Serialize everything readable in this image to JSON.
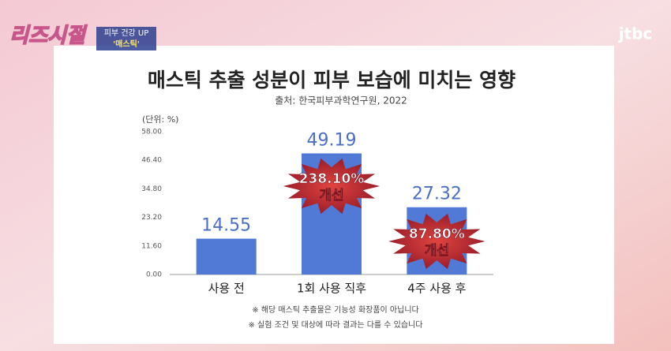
{
  "chart_data": {
    "type": "bar",
    "title": "매스틱 추출 성분이 피부 보습에 미치는 영향",
    "subtitle": "출처: 한국피부과학연구원, 2022",
    "y_axis_label": "(단위: %)",
    "categories": [
      "사용 전",
      "1회 사용 직후",
      "4주 사용 후"
    ],
    "values": [
      14.55,
      49.19,
      27.32
    ],
    "color": "#5179d6",
    "ylim": [
      0,
      58
    ],
    "yticks": [
      {
        "value": 0,
        "label": "0.00"
      },
      {
        "value": 11.6,
        "label": "11.60"
      },
      {
        "value": 23.2,
        "label": "23.20"
      },
      {
        "value": 34.8,
        "label": "34.80"
      },
      {
        "value": 46.4,
        "label": "46.40"
      },
      {
        "value": 58,
        "label": "58.00"
      }
    ],
    "grid": false,
    "annotations": [
      {
        "percent": "238.10%",
        "text": "개선"
      },
      {
        "percent": "87.80%",
        "text": "개선"
      }
    ],
    "footnotes": [
      "※ 해당 매스틱 추출물은 기능성 화장품이 아닙니다",
      "※ 실험 조건 및 대상에 따라 결과는 다를 수 있습니다"
    ]
  },
  "overlay": {
    "show_logo": "리즈시절",
    "caption_top": "피부 건강 UP",
    "caption_bottom": "'매스틱'",
    "channel": "jtbc"
  }
}
